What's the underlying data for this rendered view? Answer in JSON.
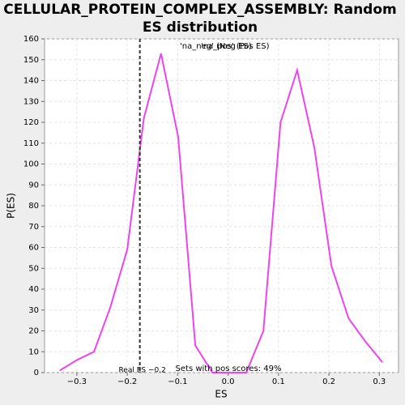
{
  "chart_data": {
    "type": "line",
    "title": "CELLULAR_PROTEIN_COMPLEX_ASSEMBLY: Random ES distribution",
    "xlabel": "ES",
    "ylabel": "P(ES)",
    "x": [
      -0.334,
      -0.3,
      -0.266,
      -0.234,
      -0.2,
      -0.167,
      -0.133,
      -0.099,
      -0.065,
      -0.031,
      0.002,
      0.036,
      0.07,
      0.104,
      0.137,
      0.171,
      0.205,
      0.239,
      0.272,
      0.306
    ],
    "series": [
      {
        "name": "P(ES)",
        "color": "#ee44ee",
        "values": [
          1,
          6,
          10,
          31,
          59,
          122,
          153,
          113,
          13,
          0,
          0,
          0,
          20,
          120,
          145,
          108,
          51,
          26,
          15,
          5
        ]
      }
    ],
    "xlim": [
      -0.364,
      0.338
    ],
    "ylim": [
      0,
      160
    ],
    "xticks": [
      {
        "value": -0.3,
        "label": "−0.3"
      },
      {
        "value": -0.2,
        "label": "−0.2"
      },
      {
        "value": -0.1,
        "label": "−0.1"
      },
      {
        "value": 0,
        "label": "0.0"
      },
      0.1,
      0.2,
      0.3
    ],
    "yticks": [
      0,
      10,
      20,
      30,
      40,
      50,
      60,
      70,
      80,
      90,
      100,
      110,
      120,
      130,
      140,
      150,
      160
    ],
    "grid": true,
    "real_es": {
      "x": -0.175,
      "label": "Real ES −0.2"
    },
    "annotation": "Sets with pos scores: 49%",
    "legend": [
      {
        "name": "'na_neg' (Neg ES)",
        "color": "#3333cc"
      },
      {
        "name": "'na_pos' (Pos ES)",
        "color": "#ee3333"
      }
    ]
  }
}
